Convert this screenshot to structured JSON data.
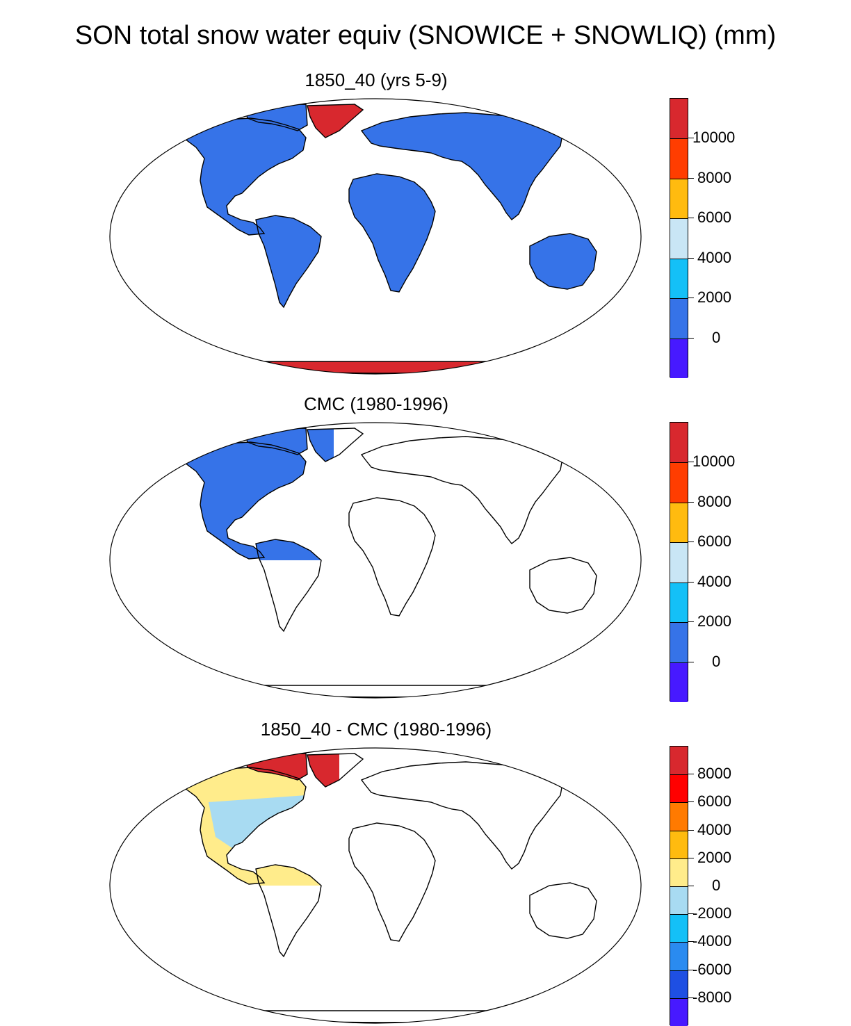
{
  "figure": {
    "title": "SON total snow water equiv (SNOWICE + SNOWLIQ) (mm)"
  },
  "colors": {
    "dark_red": "#d8282e",
    "red_orange": "#ff3d00",
    "orange_yellow": "#ffbb0f",
    "light_blue": "#c9e6f5",
    "cyan": "#14c0f7",
    "blue": "#3673e8",
    "violet": "#4719ff",
    "diff_red": "#ff0000",
    "diff_orange": "#ff7a00",
    "diff_yellow": "#ffec8b",
    "diff_light_blue": "#a8dbf2",
    "diff_mid_blue": "#2a8bf0",
    "diff_deep_blue": "#1e4fe3"
  },
  "panels": [
    {
      "title": "1850_40 (yrs 5-9)",
      "fill_layer": "all-land",
      "colorbar": {
        "labels": [
          "10000",
          "8000",
          "6000",
          "4000",
          "2000",
          "0"
        ],
        "colors": [
          "#d8282e",
          "#ff3d00",
          "#ffbb0f",
          "#c9e6f5",
          "#14c0f7",
          "#3673e8",
          "#4719ff"
        ]
      },
      "fills": {
        "land": "#3673e8",
        "greenland": "#d8282e",
        "antarctica": "#d8282e"
      }
    },
    {
      "title": "CMC (1980-1996)",
      "fill_layer": "north-america-only",
      "colorbar": {
        "labels": [
          "10000",
          "8000",
          "6000",
          "4000",
          "2000",
          "0"
        ],
        "colors": [
          "#d8282e",
          "#ff3d00",
          "#ffbb0f",
          "#c9e6f5",
          "#14c0f7",
          "#3673e8",
          "#4719ff"
        ]
      },
      "fills": {
        "north_america": "#3673e8",
        "greenland": "#3673e8"
      }
    },
    {
      "title": "1850_40 - CMC (1980-1996)",
      "fill_layer": "difference",
      "colorbar": {
        "labels": [
          "8000",
          "6000",
          "4000",
          "2000",
          "0",
          "-2000",
          "-4000",
          "-6000",
          "-8000"
        ],
        "colors": [
          "#d8282e",
          "#ff0000",
          "#ff7a00",
          "#ffbb0f",
          "#ffec8b",
          "#a8dbf2",
          "#14c0f7",
          "#2a8bf0",
          "#1e4fe3",
          "#4719ff"
        ]
      },
      "fills": {
        "north_america": "#a8dbf2",
        "west_and_south": "#ffec8b",
        "greenland": "#d8282e",
        "arctic_islands": "#d8282e"
      }
    }
  ]
}
